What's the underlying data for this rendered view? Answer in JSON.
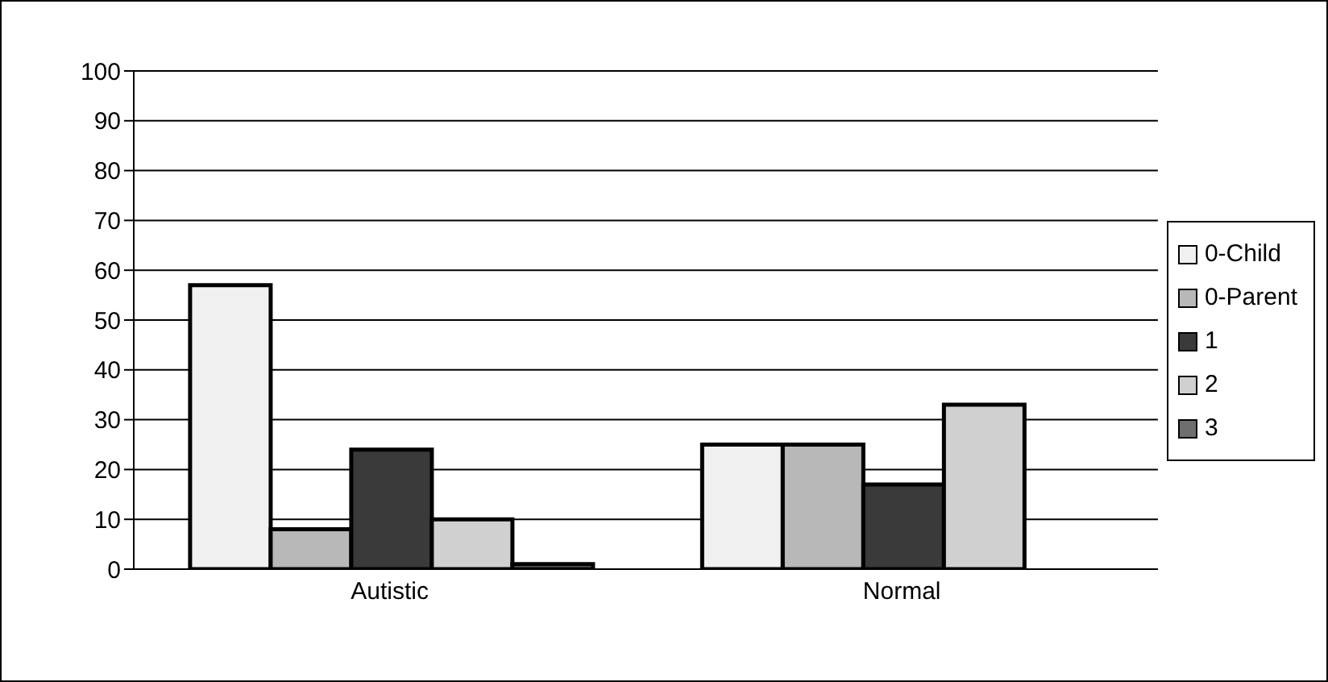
{
  "chart_data": {
    "type": "bar",
    "categories": [
      "Autistic",
      "Normal"
    ],
    "series": [
      {
        "name": "0-Child",
        "color": "#f0f0f0",
        "values": [
          57,
          25
        ]
      },
      {
        "name": "0-Parent",
        "color": "#b8b8b8",
        "values": [
          8,
          25
        ]
      },
      {
        "name": "1",
        "color": "#3a3a3a",
        "values": [
          24,
          17
        ]
      },
      {
        "name": "2",
        "color": "#d0d0d0",
        "values": [
          10,
          33
        ]
      },
      {
        "name": "3",
        "color": "#6e6e6e",
        "values": [
          1,
          0
        ]
      }
    ],
    "ylim": [
      0,
      100
    ],
    "yticks": [
      0,
      10,
      20,
      30,
      40,
      50,
      60,
      70,
      80,
      90,
      100
    ],
    "grid": "y",
    "legend": "right"
  }
}
